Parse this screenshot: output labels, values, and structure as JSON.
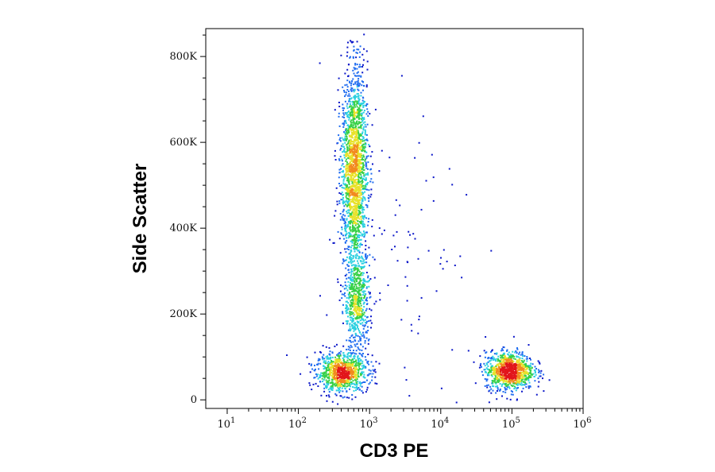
{
  "chart_data": {
    "type": "scatter",
    "subtype": "flow-cytometry density dot plot",
    "title": "",
    "xlabel": "CD3 PE",
    "ylabel": "Side Scatter",
    "x_scale": "log",
    "xlim": [
      5,
      1000000
    ],
    "ylim": [
      -20000,
      865000
    ],
    "x_ticks": [
      {
        "base": "10",
        "exp": "1",
        "value": 10
      },
      {
        "base": "10",
        "exp": "2",
        "value": 100
      },
      {
        "base": "10",
        "exp": "3",
        "value": 1000
      },
      {
        "base": "10",
        "exp": "4",
        "value": 10000
      },
      {
        "base": "10",
        "exp": "5",
        "value": 100000
      },
      {
        "base": "10",
        "exp": "6",
        "value": 1000000
      }
    ],
    "y_ticks": [
      {
        "label": "0",
        "value": 0
      },
      {
        "label": "200K",
        "value": 200000
      },
      {
        "label": "400K",
        "value": 400000
      },
      {
        "label": "600K",
        "value": 600000
      },
      {
        "label": "800K",
        "value": 800000
      }
    ],
    "grid": false,
    "legend": "none",
    "colormap": [
      "#0a16c8",
      "#1f6cf0",
      "#2bd0e0",
      "#36d046",
      "#e8e22a",
      "#f28a1e",
      "#e2151b"
    ],
    "populations": [
      {
        "x": 400,
        "y": 65000,
        "sx_log": 0.18,
        "sy": 22000,
        "n": 900
      },
      {
        "x": 650,
        "y": 230000,
        "sx_log": 0.09,
        "sy": 60000,
        "n": 650
      },
      {
        "x": 600,
        "y": 540000,
        "sx_log": 0.09,
        "sy": 115000,
        "n": 1900
      },
      {
        "x": 90000,
        "y": 70000,
        "sx_log": 0.17,
        "sy": 22000,
        "n": 1000
      },
      {
        "x": 2500,
        "y": 300000,
        "sx_log": 0.55,
        "sy": 220000,
        "n": 110
      }
    ]
  }
}
